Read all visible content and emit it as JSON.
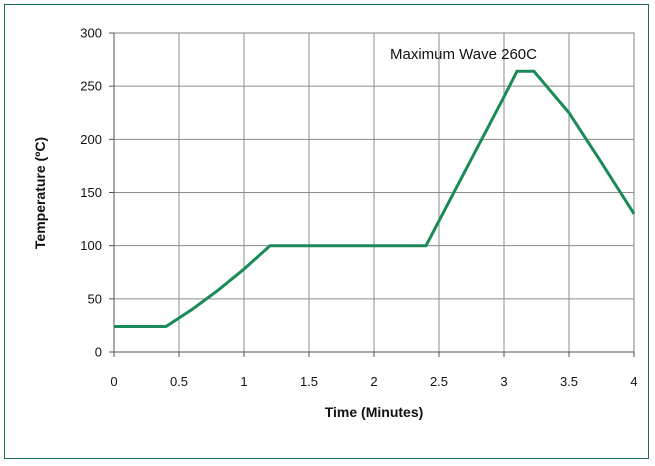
{
  "chart_data": {
    "type": "line",
    "title": "",
    "xlabel": "Time (Minutes)",
    "ylabel": "Temperature (ºC)",
    "xlim": [
      0,
      4
    ],
    "ylim": [
      0,
      300
    ],
    "x_ticks": [
      "0",
      "0.5",
      "1",
      "1.5",
      "2",
      "2.5",
      "3",
      "3.5",
      "4"
    ],
    "y_ticks": [
      "0",
      "50",
      "100",
      "150",
      "200",
      "250",
      "300"
    ],
    "grid": true,
    "annotation": "Maximum Wave 260C",
    "series": [
      {
        "color": "#1a8a57",
        "points": [
          [
            0,
            24
          ],
          [
            0.4,
            24
          ],
          [
            0.6,
            40
          ],
          [
            0.8,
            58
          ],
          [
            1.0,
            78
          ],
          [
            1.2,
            100
          ],
          [
            1.5,
            100
          ],
          [
            2.0,
            100
          ],
          [
            2.4,
            100
          ],
          [
            2.7,
            170
          ],
          [
            3.0,
            240
          ],
          [
            3.1,
            264
          ],
          [
            3.23,
            264
          ],
          [
            3.5,
            225
          ],
          [
            3.75,
            178
          ],
          [
            4.0,
            130
          ]
        ]
      }
    ]
  }
}
